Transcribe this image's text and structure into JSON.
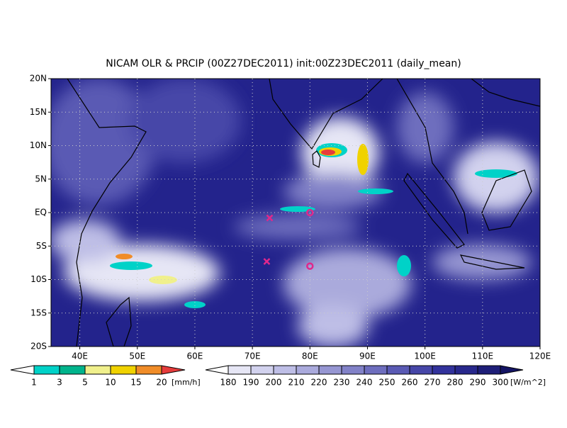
{
  "chart_data": {
    "type": "map",
    "title": "NICAM OLR & PRCIP (00Z27DEC2011) init:00Z23DEC2011 (daily_mean)",
    "xlim": [
      35,
      120
    ],
    "ylim": [
      -20,
      20
    ],
    "xticks": [
      {
        "value": 40,
        "label": "40E"
      },
      {
        "value": 50,
        "label": "50E"
      },
      {
        "value": 60,
        "label": "60E"
      },
      {
        "value": 70,
        "label": "70E"
      },
      {
        "value": 80,
        "label": "80E"
      },
      {
        "value": 90,
        "label": "90E"
      },
      {
        "value": 100,
        "label": "100E"
      },
      {
        "value": 110,
        "label": "110E"
      },
      {
        "value": 120,
        "label": "120E"
      }
    ],
    "yticks": [
      {
        "value": -20,
        "label": "20S"
      },
      {
        "value": -15,
        "label": "15S"
      },
      {
        "value": -10,
        "label": "10S"
      },
      {
        "value": -5,
        "label": "5S"
      },
      {
        "value": 0,
        "label": "EQ"
      },
      {
        "value": 5,
        "label": "5N"
      },
      {
        "value": 10,
        "label": "10N"
      },
      {
        "value": 15,
        "label": "15N"
      },
      {
        "value": 20,
        "label": "20N"
      }
    ],
    "grid": true,
    "markers": [
      {
        "lon": 80,
        "lat": 0,
        "symbol": "circle",
        "color": "#e0288c"
      },
      {
        "lon": 80,
        "lat": -8,
        "symbol": "circle",
        "color": "#e0288c"
      },
      {
        "lon": 73,
        "lat": -0.8,
        "symbol": "x",
        "color": "#e0288c"
      },
      {
        "lon": 72.5,
        "lat": -7.3,
        "symbol": "x",
        "color": "#e0288c"
      }
    ],
    "colorbars": [
      {
        "levels": [
          1,
          3,
          5,
          10,
          15,
          20
        ],
        "unit": "[mm/h]",
        "colors": [
          "#ffffff",
          "#00d2c8",
          "#00b48c",
          "#f0f08c",
          "#f0d200",
          "#f08c28",
          "#e63c3c"
        ]
      },
      {
        "levels": [
          180,
          190,
          200,
          210,
          220,
          230,
          240,
          250,
          260,
          270,
          280,
          290,
          300
        ],
        "unit": "[W/m^2]",
        "colors": [
          "#ffffff",
          "#e6e6f5",
          "#d2d2ee",
          "#bebee6",
          "#aaaadc",
          "#9696d2",
          "#8282c8",
          "#6e6ebe",
          "#5a5ab4",
          "#4646a8",
          "#32329c",
          "#28288c",
          "#1e1e78",
          "#141464"
        ]
      }
    ]
  }
}
